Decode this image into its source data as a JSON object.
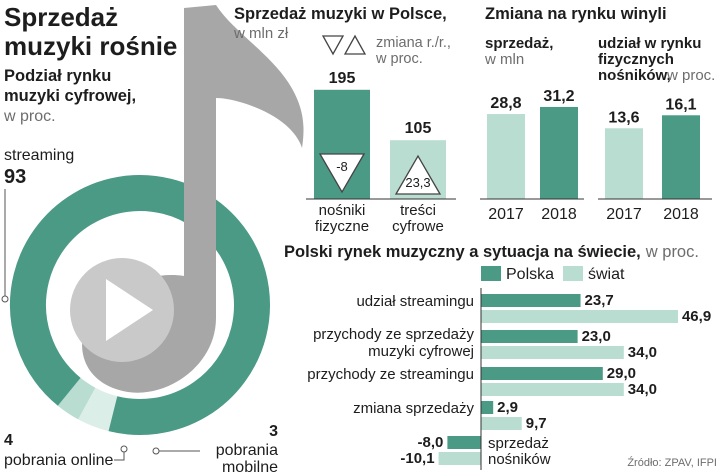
{
  "colors": {
    "primary": "#4a9a86",
    "secondary": "#b9ddd1",
    "light": "#dbeee7",
    "note": "#b8b8b8",
    "text": "#1d1d1d",
    "muted": "#6d6d6d"
  },
  "infographic": {
    "title_line1": "Sprzedaż",
    "title_line2": "muzyki rośnie",
    "source": "Źródło: ZPAV, IFPI"
  },
  "chart_data": [
    {
      "type": "pie",
      "title_line1": "Podział rynku",
      "title_line2": "muzyki cyfrowej,",
      "unit": "w proc.",
      "slices": [
        {
          "label": "streaming",
          "value": 93
        },
        {
          "label_line1": "pobrania",
          "label_line2": "mobilne",
          "value": 3
        },
        {
          "label": "pobrania online",
          "value": 4
        }
      ]
    },
    {
      "type": "bar",
      "title": "Sprzedaż muzyki w Polsce,",
      "unit": "w mln zł",
      "legend_text_line1": "zmiana r./r.,",
      "legend_text_line2": "w proc.",
      "categories": [
        {
          "line1": "nośniki",
          "line2": "fizyczne"
        },
        {
          "line1": "treści",
          "line2": "cyfrowe"
        }
      ],
      "values": [
        195,
        105
      ],
      "change_yoy": [
        -8,
        23.3
      ],
      "value_labels": [
        "195",
        "105"
      ],
      "change_labels": [
        "-8",
        "23,3"
      ]
    },
    {
      "type": "bar",
      "title": "Zmiana na rynku winyli",
      "panels": [
        {
          "title": "sprzedaż,",
          "unit": "w mln",
          "categories": [
            "2017",
            "2018"
          ],
          "values": [
            28.8,
            31.2
          ],
          "value_labels": [
            "28,8",
            "31,2"
          ]
        },
        {
          "title_line1": "udział w rynku",
          "title_line2": "fizycznych",
          "title_line3": "nośników,",
          "unit": "w proc.",
          "categories": [
            "2017",
            "2018"
          ],
          "values": [
            13.6,
            16.1
          ],
          "value_labels": [
            "13,6",
            "16,1"
          ]
        }
      ]
    },
    {
      "type": "bar",
      "orientation": "horizontal",
      "title": "Polski rynek muzyczny a sytuacja na świecie,",
      "unit": "w proc.",
      "legend_position": "top",
      "series": [
        {
          "name": "Polska",
          "values": [
            23.7,
            23.0,
            29.0,
            2.9,
            -8.0
          ],
          "value_labels": [
            "23,7",
            "23,0",
            "29,0",
            "2,9",
            "-8,0"
          ]
        },
        {
          "name": "świat",
          "values": [
            46.9,
            34.0,
            34.0,
            9.7,
            -10.1
          ],
          "value_labels": [
            "46,9",
            "34,0",
            "34,0",
            "9,7",
            "-10,1"
          ]
        }
      ],
      "categories": [
        {
          "line1": "udział streamingu",
          "line2": ""
        },
        {
          "line1": "przychody ze sprzedaży",
          "line2": "muzyki cyfrowej"
        },
        {
          "line1": "przychody ze streamingu",
          "line2": ""
        },
        {
          "line1": "zmiana sprzedaży",
          "line2": ""
        },
        {
          "line1": "sprzedaż",
          "line2": "nośników"
        }
      ]
    }
  ]
}
